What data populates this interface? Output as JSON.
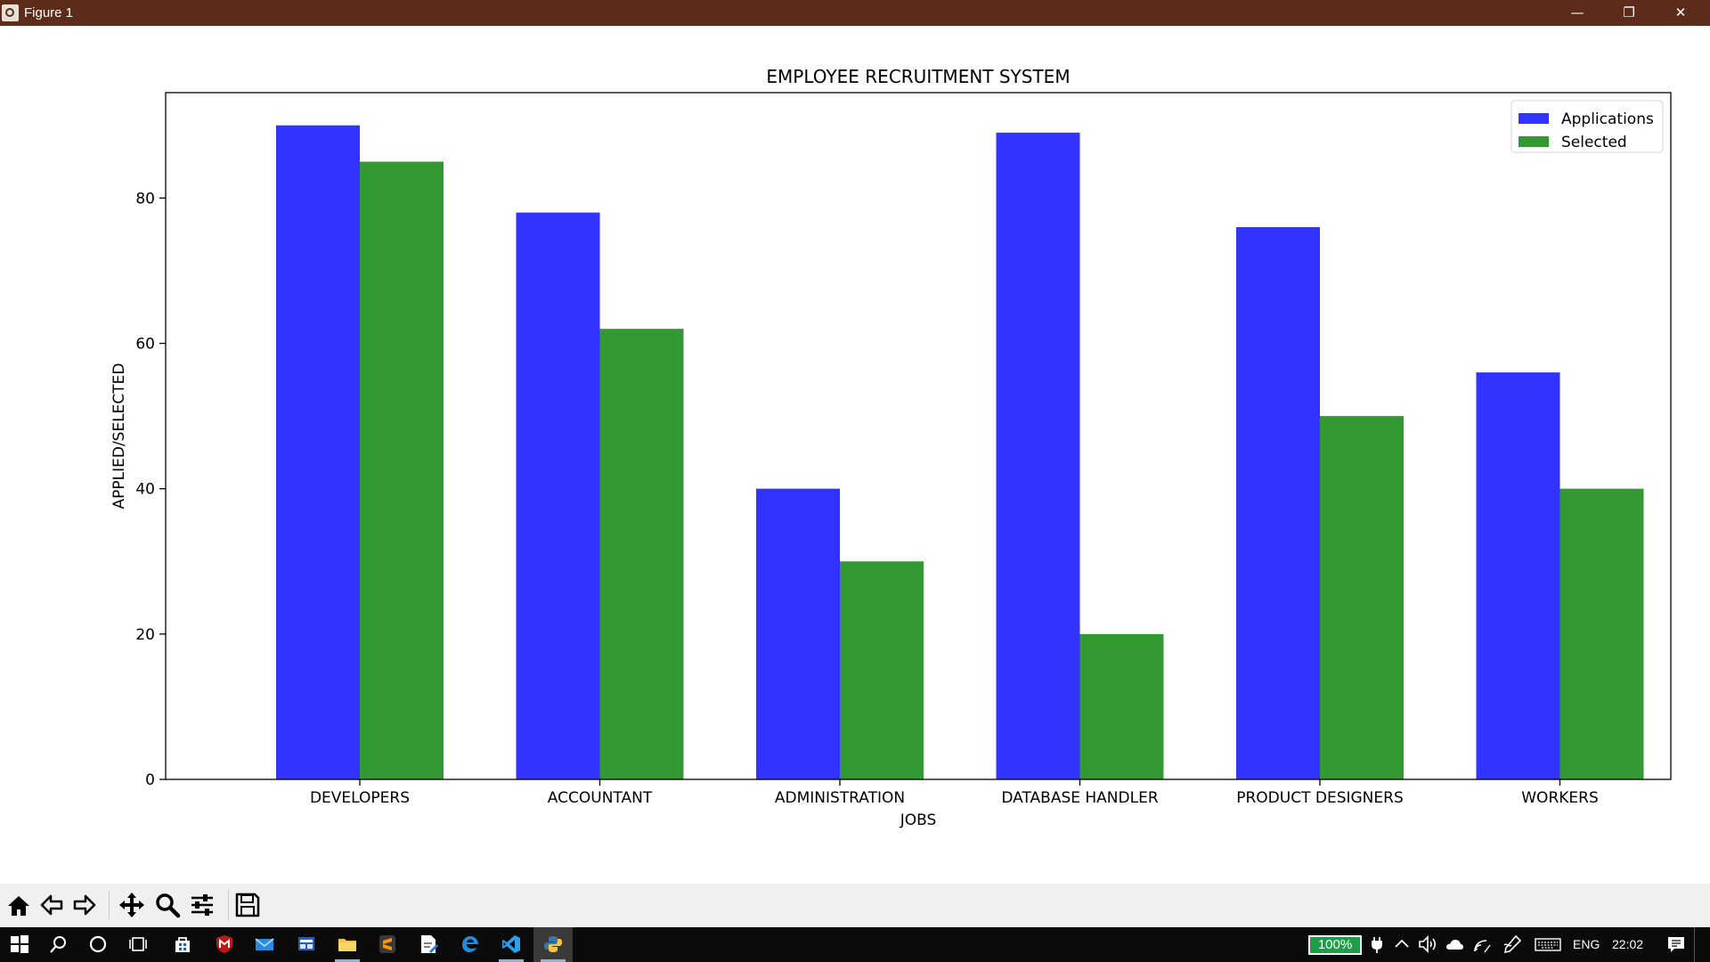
{
  "window": {
    "title": "Figure 1",
    "buttons": {
      "minimize": "—",
      "maximize": "❐",
      "close": "✕"
    }
  },
  "chart_data": {
    "type": "bar",
    "title": "EMPLOYEE RECRUITMENT SYSTEM",
    "xlabel": "JOBS",
    "ylabel": "APPLIED/SELECTED",
    "categories": [
      "DEVELOPERS",
      "ACCOUNTANT",
      "ADMINISTRATION",
      "DATABASE HANDLER",
      "PRODUCT DESIGNERS",
      "WORKERS"
    ],
    "series": [
      {
        "name": "Applications",
        "values": [
          90,
          78,
          40,
          89,
          76,
          56
        ],
        "color": "#3333ff"
      },
      {
        "name": "Selected",
        "values": [
          85,
          62,
          30,
          20,
          50,
          40
        ],
        "color": "#339933"
      }
    ],
    "yticks": [
      0,
      20,
      40,
      60,
      80
    ],
    "ylim": [
      0,
      94.5
    ],
    "grid": false,
    "legend": "top-right"
  },
  "toolbar": {
    "icons": [
      "home-icon",
      "back-arrow-icon",
      "forward-arrow-icon",
      "pan-icon",
      "zoom-icon",
      "configure-subplots-icon",
      "save-icon"
    ]
  },
  "taskbar": {
    "battery": "100%",
    "language": "ENG",
    "clock": "22:02"
  }
}
